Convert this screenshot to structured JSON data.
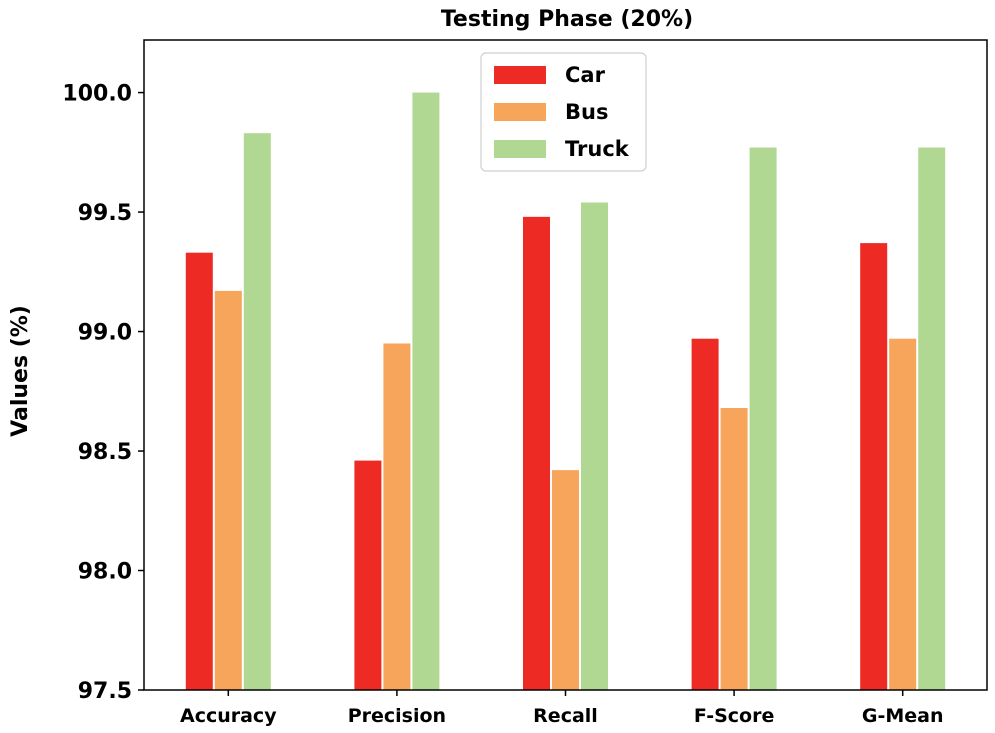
{
  "chart_data": {
    "type": "bar",
    "title": "Testing Phase (20%)",
    "xlabel": "",
    "ylabel": "Values (%)",
    "categories": [
      "Accuracy",
      "Precision",
      "Recall",
      "F-Score",
      "G-Mean"
    ],
    "series": [
      {
        "name": "Car",
        "color": "#ee2a24",
        "values": [
          99.33,
          98.46,
          99.48,
          98.97,
          99.37
        ]
      },
      {
        "name": "Bus",
        "color": "#f6a55a",
        "values": [
          99.17,
          98.95,
          98.42,
          98.68,
          98.97
        ]
      },
      {
        "name": "Truck",
        "color": "#b1d892",
        "values": [
          99.83,
          100.0,
          99.54,
          99.77,
          99.77
        ]
      }
    ],
    "ylim": [
      97.5,
      100.22
    ],
    "yticks": [
      97.5,
      98.0,
      98.5,
      99.0,
      99.5,
      100.0
    ],
    "ytick_labels": [
      "97.5",
      "98.0",
      "98.5",
      "99.0",
      "99.5",
      "100.0"
    ],
    "grid": false,
    "legend_position": "top-center"
  }
}
